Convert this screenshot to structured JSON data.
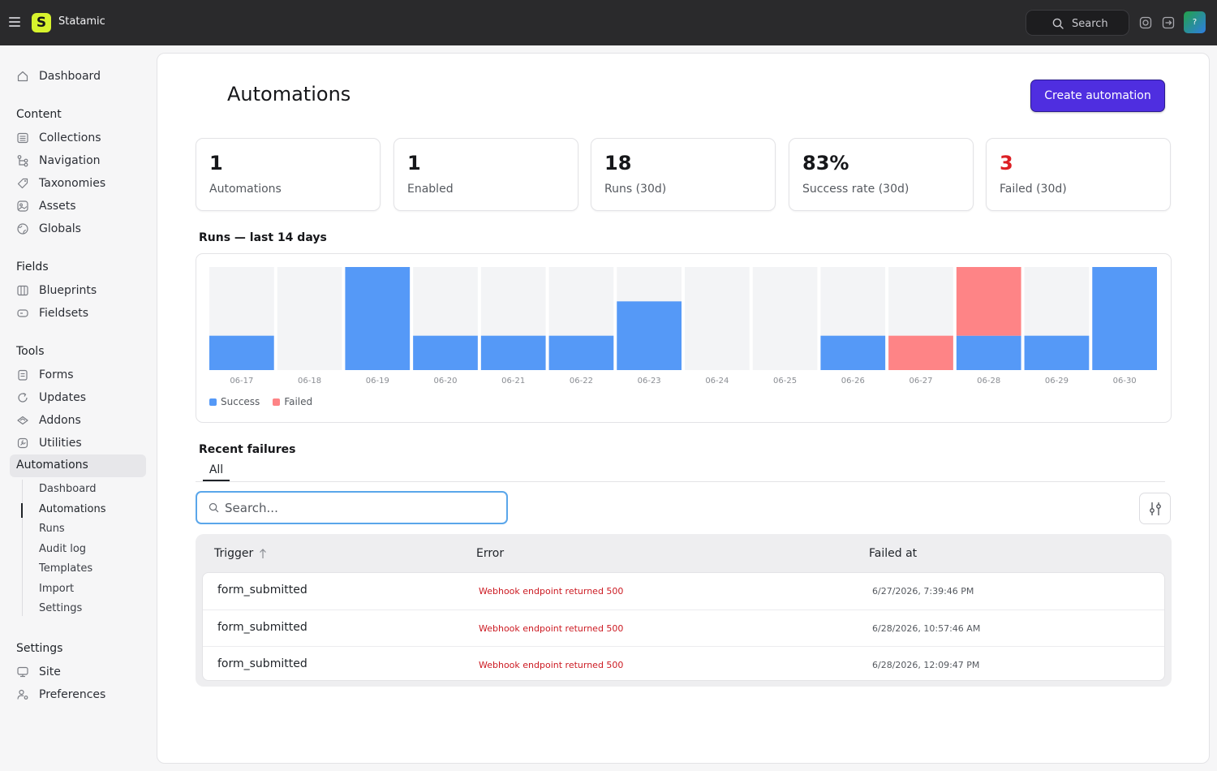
{
  "app": {
    "brand": "Statamic",
    "logo_letter": "S"
  },
  "topbar": {
    "search_label": "Search",
    "avatar_letter": "?"
  },
  "sidebar": {
    "dashboard": "Dashboard",
    "content": {
      "title": "Content",
      "items": [
        "Collections",
        "Navigation",
        "Taxonomies",
        "Assets",
        "Globals"
      ]
    },
    "fields": {
      "title": "Fields",
      "items": [
        "Blueprints",
        "Fieldsets"
      ]
    },
    "tools": {
      "title": "Tools",
      "items": [
        "Forms",
        "Updates",
        "Addons",
        "Utilities"
      ]
    },
    "automations": {
      "label": "Automations",
      "subitems": [
        "Dashboard",
        "Automations",
        "Runs",
        "Audit log",
        "Templates",
        "Import",
        "Settings"
      ],
      "current": "Automations"
    },
    "settings": {
      "title": "Settings",
      "items": [
        "Site",
        "Preferences"
      ]
    }
  },
  "page": {
    "title": "Automations",
    "create_button": "Create automation"
  },
  "stats": [
    {
      "value": "1",
      "label": "Automations"
    },
    {
      "value": "1",
      "label": "Enabled"
    },
    {
      "value": "18",
      "label": "Runs (30d)"
    },
    {
      "value": "83%",
      "label": "Success rate (30d)"
    },
    {
      "value": "3",
      "label": "Failed (30d)",
      "color": "#dc1f24"
    }
  ],
  "chart_title": "Runs — last 14 days",
  "chart_data": {
    "type": "bar",
    "title": "Runs — last 14 days",
    "stacked": true,
    "categories": [
      "06-17",
      "06-18",
      "06-19",
      "06-20",
      "06-21",
      "06-22",
      "06-23",
      "06-24",
      "06-25",
      "06-26",
      "06-27",
      "06-28",
      "06-29",
      "06-30"
    ],
    "series": [
      {
        "name": "Success",
        "color": "#5599f7",
        "values": [
          1,
          0,
          3,
          1,
          1,
          1,
          2,
          0,
          0,
          1,
          0,
          1,
          1,
          3
        ]
      },
      {
        "name": "Failed",
        "color": "#fe8486",
        "values": [
          0,
          0,
          0,
          0,
          0,
          0,
          0,
          0,
          0,
          0,
          1,
          2,
          0,
          0
        ]
      }
    ],
    "ylim": [
      0,
      3
    ],
    "legend": "bottom-left",
    "track_color": "#f3f4f6"
  },
  "recent_failures": {
    "title": "Recent failures",
    "tab": "All",
    "search_placeholder": "Search...",
    "columns": {
      "trigger": "Trigger",
      "error": "Error",
      "failed_at": "Failed at"
    },
    "rows": [
      {
        "trigger": "form_submitted",
        "error": "Webhook endpoint returned 500",
        "failed_at": "6/27/2026, 7:39:46 PM"
      },
      {
        "trigger": "form_submitted",
        "error": "Webhook endpoint returned 500",
        "failed_at": "6/28/2026, 10:57:46 AM"
      },
      {
        "trigger": "form_submitted",
        "error": "Webhook endpoint returned 500",
        "failed_at": "6/28/2026, 12:09:47 PM"
      }
    ]
  },
  "icons": {
    "menu": "hamburger-icon",
    "search": "search-icon",
    "help": "lifebuoy-icon",
    "logout": "exit-icon",
    "dashboard": "home-icon",
    "collections": "list-icon",
    "navigation": "tree-icon",
    "taxonomies": "tag-icon",
    "assets": "image-icon",
    "globals": "globe-icon",
    "blueprints": "blueprint-icon",
    "fieldsets": "fieldset-icon",
    "forms": "clipboard-icon",
    "updates": "refresh-icon",
    "addons": "puzzle-icon",
    "utilities": "wrench-icon",
    "site": "site-icon",
    "preferences": "user-settings-icon",
    "filter": "sliders-icon",
    "sort": "arrow-up-icon"
  }
}
